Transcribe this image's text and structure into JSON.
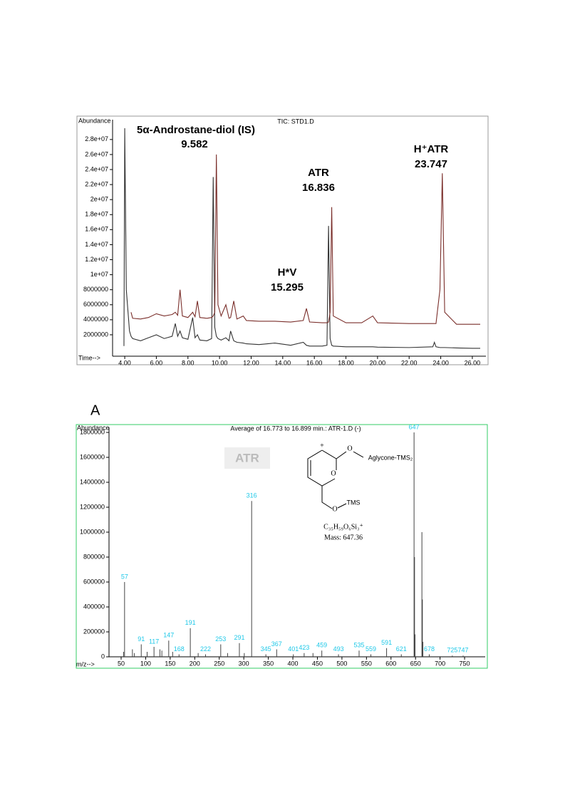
{
  "chart_data": [
    {
      "type": "line",
      "title": "TIC: STD1.D",
      "y_label": "Abundance",
      "x_label": "Time-->",
      "annotations": [
        "5α-Androstane-diol (IS)",
        "9.582",
        "ATR",
        "16.836",
        "H*V",
        "15.295",
        "H⁺ATR",
        "23.747"
      ],
      "x": [
        3.95,
        4.0,
        4.1,
        4.3,
        4.4,
        4.5,
        5.0,
        5.5,
        6.0,
        6.5,
        7.0,
        7.2,
        7.35,
        7.5,
        7.65,
        8.0,
        8.3,
        8.45,
        8.6,
        8.75,
        9.2,
        9.5,
        9.6,
        9.7,
        9.8,
        9.9,
        10.1,
        10.4,
        10.6,
        10.7,
        10.9,
        11.1,
        11.5,
        11.7,
        12.5,
        13.5,
        14.5,
        15.3,
        15.5,
        15.7,
        16.5,
        16.8,
        16.9,
        17.0,
        17.1,
        17.2,
        18.0,
        19.0,
        19.7,
        20.0,
        22.0,
        23.5,
        23.6,
        23.7,
        23.95,
        24.1,
        24.25,
        25.0,
        26.0,
        26.5
      ],
      "series": [
        {
          "color": "#333333",
          "values": [
            500000,
            29500000,
            8000000,
            2500000,
            1800000,
            1500000,
            1200000,
            1600000,
            2000000,
            1500000,
            1800000,
            3500000,
            1800000,
            2500000,
            1600000,
            1400000,
            4300000,
            1600000,
            2000000,
            1300000,
            1200000,
            1500000,
            23000000,
            3000000,
            1800000,
            1500000,
            1300000,
            1600000,
            1200000,
            2500000,
            1200000,
            1000000,
            900000,
            800000,
            700000,
            900000,
            600000,
            1000000,
            600000,
            500000,
            500000,
            600000,
            16500000,
            1500000,
            600000,
            500000,
            400000,
            400000,
            400000,
            350000,
            300000,
            400000,
            1000000,
            400000,
            300000,
            300000,
            300000,
            250000,
            200000,
            200000
          ]
        },
        {
          "color": "#7a2e2a",
          "values": [
            null,
            null,
            null,
            null,
            5000000,
            4200000,
            4100000,
            4300000,
            4800000,
            4500000,
            4700000,
            5000000,
            4600000,
            8000000,
            4500000,
            4300000,
            5000000,
            4400000,
            6500000,
            4300000,
            4200000,
            4300000,
            4500000,
            5000000,
            26000000,
            6000000,
            4500000,
            6000000,
            4200000,
            4300000,
            6500000,
            4100000,
            4500000,
            3900000,
            3800000,
            3800000,
            3700000,
            3900000,
            5500000,
            3700000,
            3600000,
            3600000,
            3700000,
            5000000,
            19000000,
            4500000,
            3600000,
            3600000,
            4500000,
            3600000,
            3500000,
            3500000,
            3500000,
            3500000,
            8000000,
            23500000,
            5000000,
            3400000,
            3400000,
            3400000
          ]
        }
      ],
      "xlim": [
        3.23,
        26.86
      ],
      "xticks": [
        {
          "value": 4,
          "label": "4.00"
        },
        {
          "value": 6,
          "label": "6.00"
        },
        {
          "value": 8,
          "label": "8.00"
        },
        {
          "value": 10,
          "label": "10.00"
        },
        {
          "value": 12,
          "label": "12.00"
        },
        {
          "value": 14,
          "label": "14.00"
        },
        {
          "value": 16,
          "label": "16.00"
        },
        {
          "value": 18,
          "label": "18.00"
        },
        {
          "value": 20,
          "label": "20.00"
        },
        {
          "value": 22,
          "label": "22.00"
        },
        {
          "value": 24,
          "label": "24.00"
        },
        {
          "value": 26,
          "label": "26.00"
        }
      ],
      "ylim": [
        -850000,
        30640000
      ],
      "yticks": [
        2000000,
        4000000,
        6000000,
        8000000,
        {
          "value": 10000000,
          "label": "1e+07"
        },
        {
          "value": 12000000,
          "label": "1.2e+07"
        },
        {
          "value": 14000000,
          "label": "1.4e+07"
        },
        {
          "value": 16000000,
          "label": "1.6e+07"
        },
        {
          "value": 18000000,
          "label": "1.8e+07"
        },
        {
          "value": 20000000,
          "label": "2e+07"
        },
        {
          "value": 22000000,
          "label": "2.2e+07"
        },
        {
          "value": 24000000,
          "label": "2.4e+07"
        },
        {
          "value": 26000000,
          "label": "2.6e+07"
        },
        {
          "value": 28000000,
          "label": "2.8e+07"
        }
      ],
      "frame_color": "#999999"
    },
    {
      "type": "bar",
      "panel_label": "A",
      "title": "Average of 16.773 to 16.899 min.: ATR-1.D (-)",
      "y_label": "Abundance",
      "x_label": "m/z-->",
      "badge": "ATR",
      "annotations": [
        "+",
        "O",
        "Aglycone-TMS₂",
        "O",
        "O",
        "TMS",
        "C₃₅H₅₉O₆Si₃⁺",
        "Mass: 647.36"
      ],
      "series": [
        {
          "color": "#444444",
          "labels": true,
          "label_color": "#1ec8e8",
          "x": [
            57,
            91,
            117,
            147,
            168,
            191,
            222,
            253,
            291,
            316,
            345,
            367,
            401,
            423,
            459,
            493,
            535,
            559,
            591,
            621,
            647,
            678,
            725,
            747
          ],
          "values": [
            600000,
            100000,
            80000,
            130000,
            20000,
            230000,
            20000,
            100000,
            110000,
            1250000,
            20000,
            60000,
            20000,
            30000,
            50000,
            20000,
            50000,
            20000,
            70000,
            20000,
            1800000,
            20000,
            10000,
            10000
          ]
        },
        {
          "color": "#444444",
          "labels": false,
          "x": [
            55,
            73,
            77,
            103,
            129,
            133,
            155,
            207,
            267,
            301,
            441,
            648,
            649,
            663,
            664,
            665
          ],
          "values": [
            40000,
            60000,
            30000,
            40000,
            60000,
            50000,
            40000,
            30000,
            30000,
            30000,
            30000,
            800000,
            180000,
            1000000,
            460000,
            120000
          ]
        }
      ],
      "xlim": [
        25.3,
        792
      ],
      "xticks": [
        50,
        100,
        150,
        200,
        250,
        300,
        350,
        400,
        450,
        500,
        550,
        600,
        650,
        700,
        750
      ],
      "ylim": [
        0,
        1840000
      ],
      "yticks": [
        0,
        200000,
        400000,
        600000,
        800000,
        1000000,
        1200000,
        1400000,
        1600000,
        1800000
      ],
      "frame_color": "#33cc66"
    }
  ]
}
